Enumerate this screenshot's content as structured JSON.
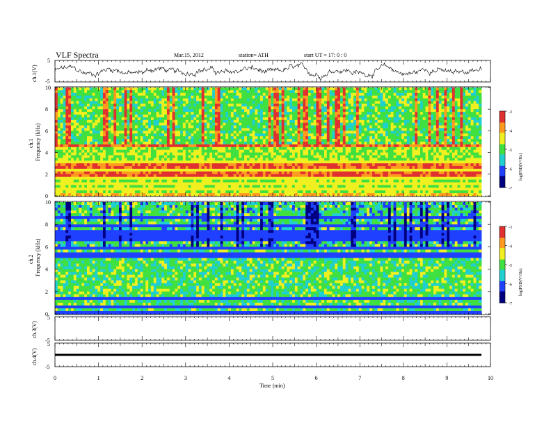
{
  "header": {
    "title": "VLF  Spectra",
    "date": "Mar.15, 2012",
    "station": "station= ATH",
    "start": "start  UT  =    17: 0  : 0"
  },
  "colorbar": {
    "label": "log(PSD(V²/Hz)",
    "ticks": [
      "-3",
      "-4",
      "-5",
      "-6",
      "-7"
    ],
    "colors": [
      "#e03030",
      "#ff9a20",
      "#f0f020",
      "#40e040",
      "#20d0d0",
      "#2040ff",
      "#000080"
    ]
  },
  "chart_data": [
    {
      "id": "ch1_waveform",
      "type": "line",
      "ylabel": "ch.1(V)",
      "ylim": [
        -5,
        5
      ],
      "yticks": [
        "5",
        "-5"
      ],
      "xlim": [
        0,
        10
      ],
      "series": [
        {
          "color": "#000000",
          "approx_level": 0,
          "amplitude": 3
        }
      ]
    },
    {
      "id": "ch1_spectrogram",
      "type": "heatmap",
      "ylabel": "ch.1\nFrequency  (kHz)",
      "ylabel_lines": [
        "ch.1",
        "Frequency  (kHz)"
      ],
      "ylim": [
        0,
        10
      ],
      "yticks": [
        "0",
        "2",
        "4",
        "6",
        "8",
        "10"
      ],
      "xlim": [
        0,
        9.8
      ],
      "color_scale": [
        -7,
        -3
      ],
      "note": "High power (red/orange) below ~5 kHz, green/yellow 5-10 kHz with red vertical bursts"
    },
    {
      "id": "ch2_spectrogram",
      "type": "heatmap",
      "ylabel_lines": [
        "ch.2",
        "Frequency  (kHz)"
      ],
      "ylim": [
        0,
        10
      ],
      "yticks": [
        "0",
        "2",
        "4",
        "6",
        "8",
        "10"
      ],
      "xlim": [
        0,
        9.8
      ],
      "color_scale": [
        -7,
        -3
      ],
      "note": "Mostly green/cyan with blue bands, dark vertical streaks above 6 kHz"
    },
    {
      "id": "ch3_waveform",
      "type": "line",
      "ylabel": "ch.3(V)",
      "ylim": [
        -5,
        5
      ],
      "yticks": [
        "5",
        "-5"
      ],
      "series": []
    },
    {
      "id": "ch4_waveform",
      "type": "line",
      "ylabel": "ch.4(V)",
      "ylim": [
        -5,
        5
      ],
      "yticks": [
        "5",
        "-5"
      ],
      "series": [
        {
          "color": "#000000",
          "approx_level": 0,
          "amplitude": 0.3
        }
      ]
    }
  ],
  "xaxis": {
    "label": "Time  (min)",
    "ticks": [
      "0",
      "1",
      "2",
      "3",
      "4",
      "5",
      "6",
      "7",
      "8",
      "9",
      "10"
    ],
    "range": [
      0,
      10
    ]
  }
}
